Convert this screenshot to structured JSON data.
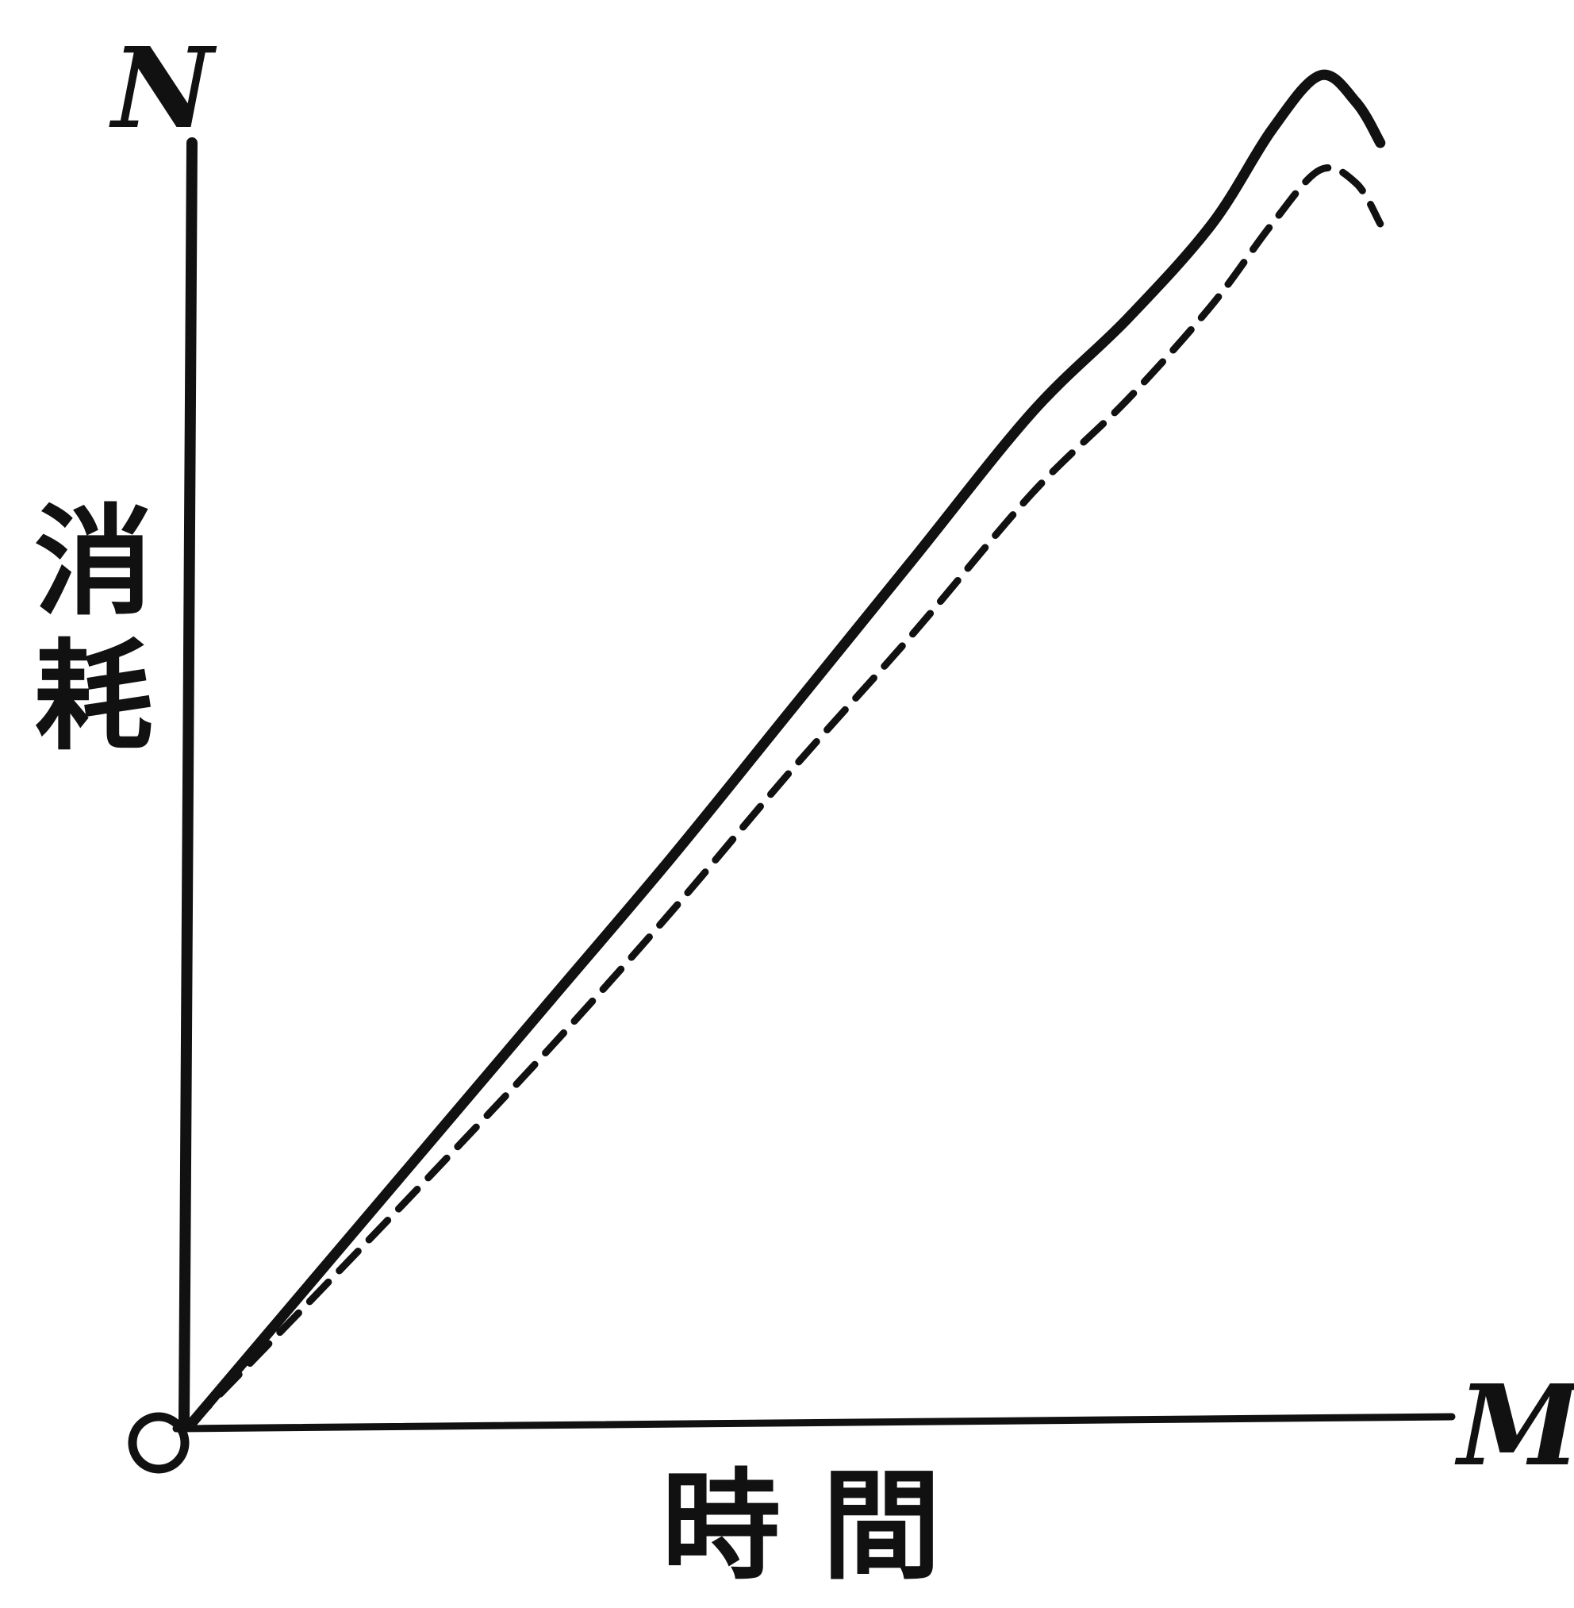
{
  "chart_data": {
    "type": "line",
    "title": "",
    "xlabel": "時 間",
    "ylabel_chars": [
      "消",
      "耗"
    ],
    "origin_label": "O",
    "x_end_label": "M",
    "y_end_label": "N",
    "grid": false,
    "xlim": [
      0,
      100
    ],
    "ylim": [
      0,
      100
    ],
    "series": [
      {
        "style": "solid",
        "x": [
          0,
          10,
          20,
          30,
          40,
          50,
          60,
          70,
          78,
          85,
          90,
          94,
          97,
          99
        ],
        "y": [
          0,
          10.5,
          21,
          31.5,
          42,
          53,
          64,
          75,
          82,
          89,
          96,
          100,
          98,
          95
        ]
      },
      {
        "style": "dashed",
        "x": [
          0,
          10,
          20,
          30,
          40,
          50,
          60,
          70,
          78,
          85,
          90,
          94,
          97,
          99
        ],
        "y": [
          0,
          9.2,
          18.5,
          28,
          38,
          48.5,
          58.5,
          69,
          76,
          83,
          89,
          93,
          92,
          89
        ]
      }
    ]
  }
}
